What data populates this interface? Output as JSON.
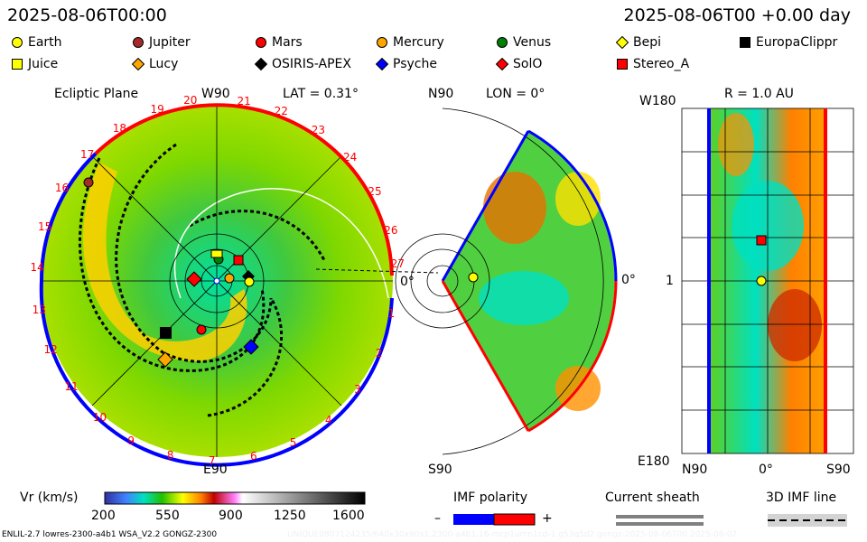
{
  "header": {
    "date_left": "2025-08-06T00:00",
    "date_right": "2025-08-06T00 +0.00 day"
  },
  "legend": [
    {
      "label": "Earth",
      "shape": "circle",
      "color": "#ffff00"
    },
    {
      "label": "Jupiter",
      "shape": "circle",
      "color": "#a52a2a"
    },
    {
      "label": "Mars",
      "shape": "circle",
      "color": "#ff0000"
    },
    {
      "label": "Mercury",
      "shape": "circle",
      "color": "#ffa500"
    },
    {
      "label": "Venus",
      "shape": "circle",
      "color": "#008000"
    },
    {
      "label": "Bepi",
      "shape": "diamond",
      "color": "#ffff00"
    },
    {
      "label": "EuropaClippr",
      "shape": "square",
      "color": "#000000"
    },
    {
      "label": "Juice",
      "shape": "square",
      "color": "#ffff00"
    },
    {
      "label": "Lucy",
      "shape": "diamond",
      "color": "#ffa500"
    },
    {
      "label": "OSIRIS-APEX",
      "shape": "diamond",
      "color": "#000000"
    },
    {
      "label": "Psyche",
      "shape": "diamond",
      "color": "#0000ff"
    },
    {
      "label": "SolO",
      "shape": "diamond",
      "color": "#ff0000"
    },
    {
      "label": "Stereo_A",
      "shape": "square",
      "color": "#ff0000"
    }
  ],
  "ecliptic": {
    "title": "Ecliptic Plane",
    "top": "W90",
    "lat": "LAT = 0.31°",
    "bottom": "E90",
    "right": "0°",
    "carrington_ticks": [
      "20",
      "21",
      "22",
      "23",
      "24",
      "25",
      "26",
      "27",
      "1",
      "2",
      "3",
      "4",
      "5",
      "6",
      "7",
      "8",
      "9",
      "10",
      "11",
      "12",
      "13",
      "14",
      "15",
      "16",
      "17",
      "18",
      "19"
    ]
  },
  "meridional": {
    "top": "N90",
    "lon": "LON = 0°",
    "bottom": "S90",
    "right": "0°"
  },
  "radial": {
    "r": "R = 1.0 AU",
    "top": "W180",
    "mid": "1",
    "bottom": "E180",
    "x_left": "N90",
    "x_mid": "0°",
    "x_right": "S90"
  },
  "colorbar": {
    "label": "Vr (km/s)",
    "ticks": [
      "200",
      "550",
      "900",
      "1250",
      "1600"
    ]
  },
  "imf": {
    "label": "IMF polarity",
    "minus": "–",
    "plus": "+",
    "neg_color": "#0000ff",
    "pos_color": "#ff0000"
  },
  "sheath": {
    "label": "Current sheath"
  },
  "imfline": {
    "label": "3D IMF line"
  },
  "footer": {
    "left": "ENLIL-2.7 lowres-2300-a4b1 WSA_V2.2 GONGZ-2300",
    "right": "UNIQUE0807124235/640x30x90x1.2300-a4b1.16-mcp1umn1cd-1.g53q5d2.gongz-2025-08-06T00   2025-08-07"
  }
}
